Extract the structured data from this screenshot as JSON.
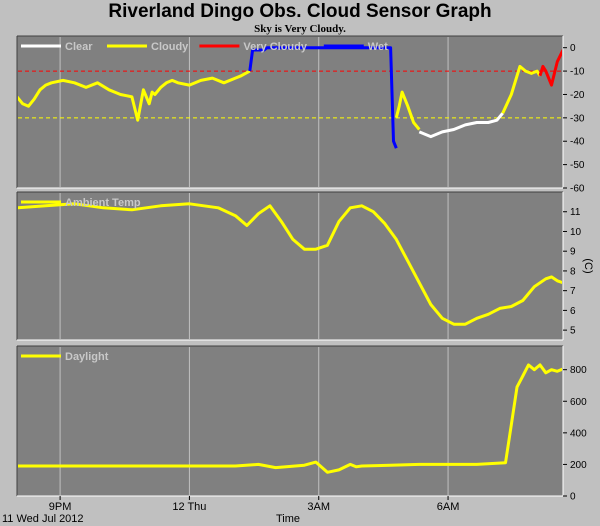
{
  "title": "Riverland Dingo Obs. Cloud Sensor Graph",
  "subtitle": "Sky is Very Cloudy.",
  "chart_data": [
    {
      "type": "line",
      "ylim": [
        -60,
        5
      ],
      "yticks": [
        0,
        -10,
        -20,
        -30,
        -40,
        -50,
        -60
      ],
      "xlim": [
        0,
        9.5
      ],
      "grid": true,
      "reference_lines": [
        {
          "y": -10,
          "color": "#ff0000",
          "style": "dashed"
        },
        {
          "y": -30,
          "color": "#ffff00",
          "style": "dashed"
        }
      ],
      "legend": [
        {
          "label": "Clear",
          "color": "#ffffff"
        },
        {
          "label": "Cloudy",
          "color": "#ffff00"
        },
        {
          "label": "Very Cloudy",
          "color": "#ff0000"
        },
        {
          "label": "Wet",
          "color": "#0000ff"
        }
      ],
      "series": [
        {
          "name": "Cloudy",
          "color": "#ffff00",
          "x": [
            0.0,
            0.1,
            0.2,
            0.3,
            0.4,
            0.5,
            0.6,
            0.8,
            1.0,
            1.2,
            1.4,
            1.6,
            1.8,
            2.0,
            2.1,
            2.2,
            2.3,
            2.35,
            2.4,
            2.5,
            2.6,
            2.7,
            2.8,
            3.0,
            3.2,
            3.4,
            3.6,
            3.8,
            3.9,
            4.05
          ],
          "y": [
            -21,
            -24,
            -25,
            -22,
            -18,
            -16,
            -15,
            -14,
            -15,
            -17,
            -15,
            -18,
            -20,
            -21,
            -31,
            -18,
            -24,
            -19,
            -20,
            -17,
            -15,
            -14,
            -15,
            -16,
            -14,
            -13,
            -15,
            -13,
            -12,
            -10
          ]
        },
        {
          "name": "Wet",
          "color": "#0000ff",
          "x": [
            4.05,
            4.1,
            4.3,
            4.35,
            4.4,
            5.0,
            5.5,
            6.0,
            6.5,
            6.55,
            6.6
          ],
          "y": [
            -10,
            -1,
            -1,
            0,
            0,
            0,
            0,
            0,
            0,
            -40,
            -43
          ]
        },
        {
          "name": "Cloudy",
          "color": "#ffff00",
          "x": [
            6.6,
            6.65,
            6.7,
            6.8,
            6.9,
            7.0
          ],
          "y": [
            -30,
            -25,
            -19,
            -25,
            -32,
            -35
          ]
        },
        {
          "name": "Clear",
          "color": "#ffffff",
          "x": [
            7.0,
            7.2,
            7.4,
            7.6,
            7.8,
            8.0,
            8.2,
            8.35,
            8.45
          ],
          "y": [
            -36,
            -38,
            -36,
            -35,
            -33,
            -32,
            -32,
            -31,
            -28
          ]
        },
        {
          "name": "Cloudy",
          "color": "#ffff00",
          "x": [
            8.45,
            8.6,
            8.75,
            8.85,
            8.95,
            9.05,
            9.1
          ],
          "y": [
            -28,
            -20,
            -8,
            -10,
            -11,
            -10,
            -12
          ]
        },
        {
          "name": "Very Cloudy",
          "color": "#ff0000",
          "x": [
            9.1,
            9.15,
            9.2,
            9.3,
            9.4,
            9.5
          ],
          "y": [
            -12,
            -8,
            -10,
            -16,
            -6,
            -1
          ]
        }
      ]
    },
    {
      "type": "line",
      "series_label": "Ambient Temp",
      "ylabel": "(C)",
      "ylim": [
        4.5,
        12
      ],
      "yticks": [
        5,
        6,
        7,
        8,
        9,
        10,
        11
      ],
      "xlim": [
        0,
        9.5
      ],
      "grid": true,
      "series": [
        {
          "name": "Ambient Temp",
          "color": "#ffff00",
          "x": [
            0.0,
            0.5,
            1.0,
            1.5,
            2.0,
            2.5,
            3.0,
            3.5,
            3.8,
            4.0,
            4.2,
            4.4,
            4.6,
            4.8,
            5.0,
            5.2,
            5.4,
            5.6,
            5.8,
            6.0,
            6.2,
            6.4,
            6.6,
            6.8,
            7.0,
            7.2,
            7.4,
            7.6,
            7.8,
            8.0,
            8.2,
            8.4,
            8.6,
            8.8,
            9.0,
            9.2,
            9.3,
            9.4,
            9.5
          ],
          "y": [
            11.2,
            11.3,
            11.4,
            11.2,
            11.1,
            11.3,
            11.4,
            11.2,
            10.8,
            10.3,
            10.9,
            11.3,
            10.5,
            9.6,
            9.1,
            9.1,
            9.3,
            10.5,
            11.2,
            11.3,
            11.0,
            10.4,
            9.6,
            8.5,
            7.4,
            6.3,
            5.6,
            5.3,
            5.3,
            5.6,
            5.8,
            6.1,
            6.2,
            6.5,
            7.2,
            7.6,
            7.7,
            7.5,
            7.4
          ]
        }
      ]
    },
    {
      "type": "line",
      "series_label": "Daylight",
      "ylim": [
        0,
        950
      ],
      "yticks": [
        0,
        200,
        400,
        600,
        800
      ],
      "xlim": [
        0,
        9.5
      ],
      "grid": true,
      "series": [
        {
          "name": "Daylight",
          "color": "#ffff00",
          "x": [
            0.0,
            0.5,
            1.0,
            1.5,
            2.0,
            2.5,
            3.0,
            3.5,
            3.8,
            4.2,
            4.5,
            5.0,
            5.2,
            5.4,
            5.6,
            5.8,
            5.9,
            6.0,
            6.5,
            7.0,
            7.5,
            8.0,
            8.5,
            8.6,
            8.7,
            8.8,
            8.9,
            9.0,
            9.1,
            9.2,
            9.3,
            9.4,
            9.5
          ],
          "y": [
            190,
            190,
            190,
            190,
            190,
            190,
            190,
            190,
            190,
            200,
            180,
            195,
            215,
            150,
            165,
            200,
            185,
            190,
            195,
            200,
            200,
            200,
            210,
            450,
            690,
            760,
            830,
            800,
            830,
            780,
            800,
            790,
            805
          ]
        }
      ]
    }
  ],
  "x_axis": {
    "ticks": [
      {
        "x": 0.75,
        "label": "9PM"
      },
      {
        "x": 3.0,
        "label": "12 Thu"
      },
      {
        "x": 5.25,
        "label": "3AM"
      },
      {
        "x": 7.5,
        "label": "6AM"
      }
    ],
    "date_label": "11 Wed Jul 2012",
    "label": "Time"
  },
  "colors": {
    "panel_bg": "#808080",
    "page_bg": "#c0c0c0",
    "grid": "#c0c0c0"
  }
}
